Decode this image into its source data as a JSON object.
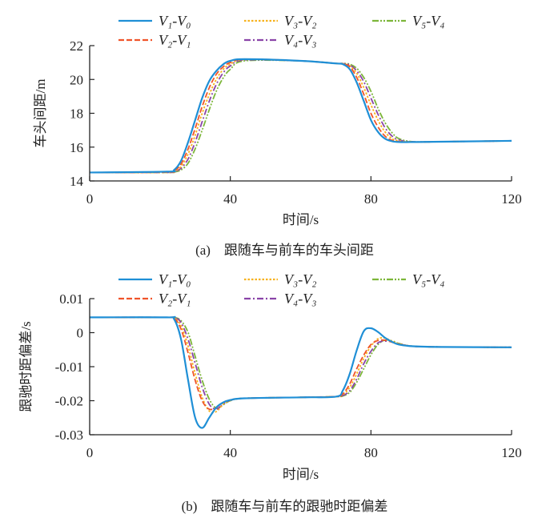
{
  "chart_data": [
    {
      "type": "line",
      "title": "",
      "caption": "(a)　跟随车与前车的车头间距",
      "xlabel": "时间/s",
      "ylabel": "车头间距/m",
      "xlim": [
        0,
        120
      ],
      "ylim": [
        14,
        22
      ],
      "xticks": [
        0,
        40,
        80,
        120
      ],
      "yticks": [
        14,
        16,
        18,
        20,
        22
      ],
      "grid": false,
      "legend_placement": "top",
      "x": [
        0,
        22,
        24,
        26,
        28,
        30,
        32,
        34,
        36,
        38,
        40,
        44,
        60,
        70,
        72,
        74,
        76,
        78,
        80,
        82,
        84,
        86,
        88,
        92,
        100,
        120
      ],
      "series": [
        {
          "name": "V₁-V₀",
          "color": "#1f8fd6",
          "dash": "solid",
          "values": [
            14.5,
            14.55,
            14.65,
            15.2,
            16.3,
            17.6,
            18.9,
            19.9,
            20.5,
            20.9,
            21.1,
            21.2,
            21.1,
            20.95,
            20.9,
            20.6,
            19.8,
            18.7,
            17.6,
            16.9,
            16.5,
            16.35,
            16.3,
            16.3,
            16.32,
            16.37
          ]
        },
        {
          "name": "V₂-V₁",
          "color": "#f0542a",
          "dash": "dashed",
          "values": [
            14.5,
            14.52,
            14.6,
            15.0,
            15.9,
            17.1,
            18.4,
            19.5,
            20.3,
            20.75,
            21.0,
            21.2,
            21.1,
            20.95,
            20.92,
            20.75,
            20.1,
            19.1,
            18.0,
            17.2,
            16.65,
            16.4,
            16.32,
            16.3,
            16.32,
            16.37
          ]
        },
        {
          "name": "V₃-V₂",
          "color": "#f7b21d",
          "dash": "dotted",
          "values": [
            14.5,
            14.5,
            14.57,
            14.85,
            15.6,
            16.7,
            18.0,
            19.1,
            20.0,
            20.6,
            20.9,
            21.18,
            21.1,
            20.95,
            20.93,
            20.8,
            20.35,
            19.5,
            18.5,
            17.6,
            16.9,
            16.5,
            16.37,
            16.3,
            16.32,
            16.37
          ]
        },
        {
          "name": "V₄-V₃",
          "color": "#8a44a8",
          "dash": "dashdot",
          "values": [
            14.5,
            14.5,
            14.55,
            14.75,
            15.3,
            16.3,
            17.5,
            18.7,
            19.7,
            20.4,
            20.8,
            21.15,
            21.1,
            20.95,
            20.94,
            20.85,
            20.5,
            19.85,
            18.9,
            17.95,
            17.15,
            16.65,
            16.42,
            16.31,
            16.32,
            16.37
          ]
        },
        {
          "name": "V₅-V₄",
          "color": "#7db63a",
          "dash": "dashdotdot",
          "values": [
            14.5,
            14.5,
            14.53,
            14.65,
            15.05,
            15.9,
            17.0,
            18.2,
            19.3,
            20.1,
            20.6,
            21.1,
            21.1,
            20.95,
            20.95,
            20.9,
            20.65,
            20.1,
            19.3,
            18.3,
            17.45,
            16.85,
            16.5,
            16.32,
            16.32,
            16.37
          ]
        }
      ]
    },
    {
      "type": "line",
      "title": "",
      "caption": "(b)　跟随车与前车的跟驰时距偏差",
      "xlabel": "时间/s",
      "ylabel": "跟驰时距偏差/s",
      "xlim": [
        0,
        120
      ],
      "ylim": [
        -0.03,
        0.01
      ],
      "xticks": [
        0,
        40,
        80,
        120
      ],
      "yticks": [
        -0.03,
        -0.02,
        -0.01,
        0,
        0.01
      ],
      "ytick_labels": [
        "-0.03",
        "-0.02",
        "-0.01",
        "0",
        "0.01"
      ],
      "grid": false,
      "legend_placement": "top",
      "x": [
        0,
        22,
        24,
        26,
        28,
        30,
        32,
        34,
        36,
        38,
        40,
        44,
        60,
        70,
        72,
        74,
        76,
        78,
        80,
        82,
        84,
        86,
        88,
        92,
        100,
        120
      ],
      "series": [
        {
          "name": "V₁-V₀",
          "color": "#1f8fd6",
          "dash": "solid",
          "values": [
            0.0045,
            0.0045,
            0.004,
            -0.002,
            -0.014,
            -0.025,
            -0.028,
            -0.025,
            -0.022,
            -0.0205,
            -0.0198,
            -0.0193,
            -0.019,
            -0.0188,
            -0.017,
            -0.012,
            -0.005,
            0.0005,
            0.0013,
            0.0002,
            -0.0015,
            -0.0027,
            -0.0035,
            -0.004,
            -0.0042,
            -0.0043
          ]
        },
        {
          "name": "V₂-V₁",
          "color": "#f0542a",
          "dash": "dashed",
          "values": [
            0.0045,
            0.0045,
            0.0043,
            0.001,
            -0.006,
            -0.014,
            -0.02,
            -0.0225,
            -0.022,
            -0.0205,
            -0.0198,
            -0.0193,
            -0.019,
            -0.0188,
            -0.018,
            -0.015,
            -0.0105,
            -0.0065,
            -0.0035,
            -0.0023,
            -0.0022,
            -0.0028,
            -0.0034,
            -0.004,
            -0.0042,
            -0.0043
          ]
        },
        {
          "name": "V₃-V₂",
          "color": "#f7b21d",
          "dash": "dotted",
          "values": [
            0.0045,
            0.0045,
            0.0044,
            0.002,
            -0.004,
            -0.012,
            -0.019,
            -0.023,
            -0.0232,
            -0.021,
            -0.0199,
            -0.0193,
            -0.019,
            -0.0188,
            -0.0182,
            -0.016,
            -0.012,
            -0.0075,
            -0.004,
            -0.0018,
            -0.0016,
            -0.0025,
            -0.0033,
            -0.004,
            -0.0042,
            -0.0043
          ]
        },
        {
          "name": "V₄-V₃",
          "color": "#8a44a8",
          "dash": "dashdot",
          "values": [
            0.0045,
            0.0045,
            0.0045,
            0.003,
            -0.002,
            -0.009,
            -0.016,
            -0.021,
            -0.0225,
            -0.021,
            -0.0199,
            -0.0193,
            -0.019,
            -0.0188,
            -0.0185,
            -0.017,
            -0.0135,
            -0.009,
            -0.0055,
            -0.003,
            -0.0025,
            -0.0027,
            -0.0033,
            -0.004,
            -0.0042,
            -0.0043
          ]
        },
        {
          "name": "V₅-V₄",
          "color": "#7db63a",
          "dash": "dashdotdot",
          "values": [
            0.0045,
            0.0045,
            0.0045,
            0.0035,
            0,
            -0.007,
            -0.014,
            -0.0195,
            -0.0222,
            -0.0212,
            -0.02,
            -0.0193,
            -0.019,
            -0.0188,
            -0.0186,
            -0.0175,
            -0.0145,
            -0.0105,
            -0.0065,
            -0.0035,
            -0.0022,
            -0.0024,
            -0.0032,
            -0.004,
            -0.0042,
            -0.0043
          ]
        }
      ]
    }
  ]
}
